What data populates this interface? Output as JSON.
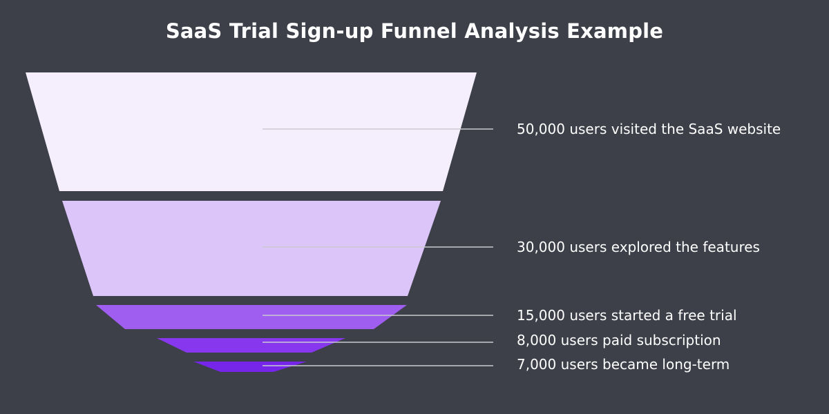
{
  "title": "SaaS Trial Sign-up Funnel Analysis Example",
  "colors": {
    "background": "#3e4049",
    "connector": "#c9cad0",
    "label_text": "#ffffff"
  },
  "stages": [
    {
      "value": 50000,
      "label": "50,000 users visited the SaaS website",
      "color": "#f4eefd"
    },
    {
      "value": 30000,
      "label": "30,000 users explored the features",
      "color": "#dcc5f9"
    },
    {
      "value": 15000,
      "label": "15,000 users started a free trial",
      "color": "#9f5ef0"
    },
    {
      "value": 8000,
      "label": "8,000 users paid subscription",
      "color": "#8738ee"
    },
    {
      "value": 7000,
      "label": "7,000 users became long-term",
      "color": "#7626e8"
    }
  ]
}
